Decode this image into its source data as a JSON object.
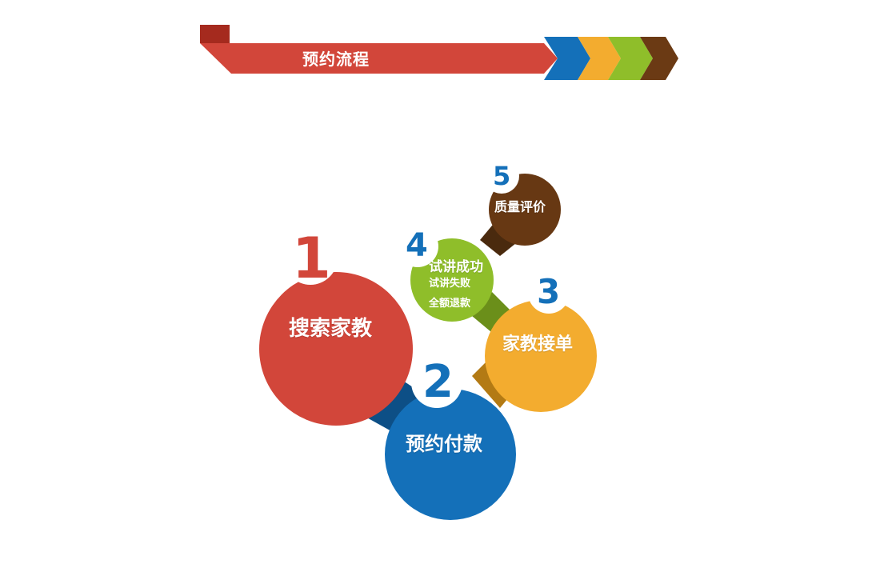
{
  "banner": {
    "title": "预约流程",
    "colors": {
      "main": "#d2463a",
      "dark": "#a52a1e",
      "blue": "#1470b9",
      "orange": "#f3ac2f",
      "green": "#8fbe2a",
      "brown": "#6b3a14"
    }
  },
  "steps": [
    {
      "number": "1",
      "title": "搜索家教",
      "color": "#d2463a",
      "num_color": "#d2463a"
    },
    {
      "number": "2",
      "title": "预约付款",
      "color": "#1470b9",
      "num_color": "#1470b9"
    },
    {
      "number": "3",
      "title": "家教接单",
      "color": "#f3ac2f",
      "num_color": "#1470b9"
    },
    {
      "number": "4",
      "title": "试讲成功",
      "sub": [
        "试讲失败",
        "全额退款"
      ],
      "color": "#8fbe2a",
      "num_color": "#1470b9"
    },
    {
      "number": "5",
      "title": "质量评价",
      "color": "#673813",
      "num_color": "#1470b9"
    }
  ]
}
